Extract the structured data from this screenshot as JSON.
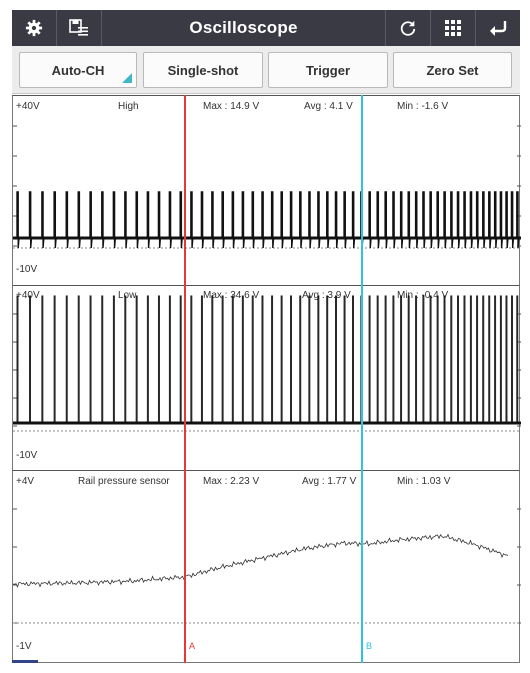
{
  "toolbar": {
    "title": "Oscilloscope",
    "buttons": {
      "settings": "gear-icon",
      "save": "save-list-icon",
      "refresh": "refresh-icon",
      "grid": "grid-icon",
      "back": "back-arrow-icon"
    }
  },
  "controls": {
    "auto_ch": "Auto-CH",
    "single_shot": "Single-shot",
    "trigger": "Trigger",
    "zero_set": "Zero Set"
  },
  "channels": [
    {
      "top_scale": "+40V",
      "bottom_scale": "-10V",
      "name": "High",
      "max": "Max : 14.9 V",
      "avg": "Avg : 4.1 V",
      "min": "Min : -1.6 V"
    },
    {
      "top_scale": "+40V",
      "bottom_scale": "-10V",
      "name": "Low",
      "max": "Max : 34.6 V",
      "avg": "Avg : 3.9 V",
      "min": "Min : -0.4 V"
    },
    {
      "top_scale": "+4V",
      "bottom_scale": "-1V",
      "name": "Rail pressure sensor",
      "max": "Max : 2.23 V",
      "avg": "Avg : 1.77 V",
      "min": "Min : 1.03 V"
    }
  ],
  "cursors": {
    "a": {
      "label": "A",
      "color": "#e53935"
    },
    "b": {
      "label": "B",
      "color": "#2ec4dc"
    }
  },
  "colors": {
    "titlebar": "#3a3a44",
    "accent": "#3fb7c9",
    "trace": "#111111"
  }
}
